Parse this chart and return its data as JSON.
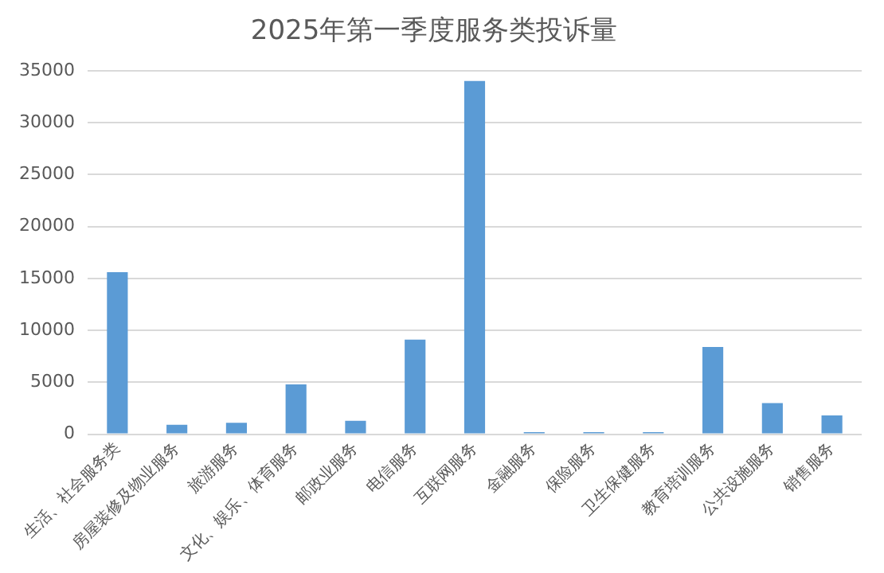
{
  "chart_data": {
    "type": "bar",
    "title": "2025年第一季度服务类投诉量",
    "categories": [
      "生活、社会服务类",
      "房屋装修及物业服务",
      "旅游服务",
      "文化、娱乐、体育服务",
      "邮政业服务",
      "电信服务",
      "互联网服务",
      "金融服务",
      "保险服务",
      "卫生保健服务",
      "教育培训服务",
      "公共设施服务",
      "销售服务"
    ],
    "values": [
      15600,
      900,
      1100,
      4800,
      1300,
      9100,
      34000,
      200,
      200,
      200,
      8400,
      3000,
      1800
    ],
    "color": "#5b9bd5",
    "ylim": [
      0,
      35000
    ],
    "yticks": [
      0,
      5000,
      10000,
      15000,
      20000,
      25000,
      30000,
      35000
    ],
    "grid": "y",
    "legend": false
  }
}
